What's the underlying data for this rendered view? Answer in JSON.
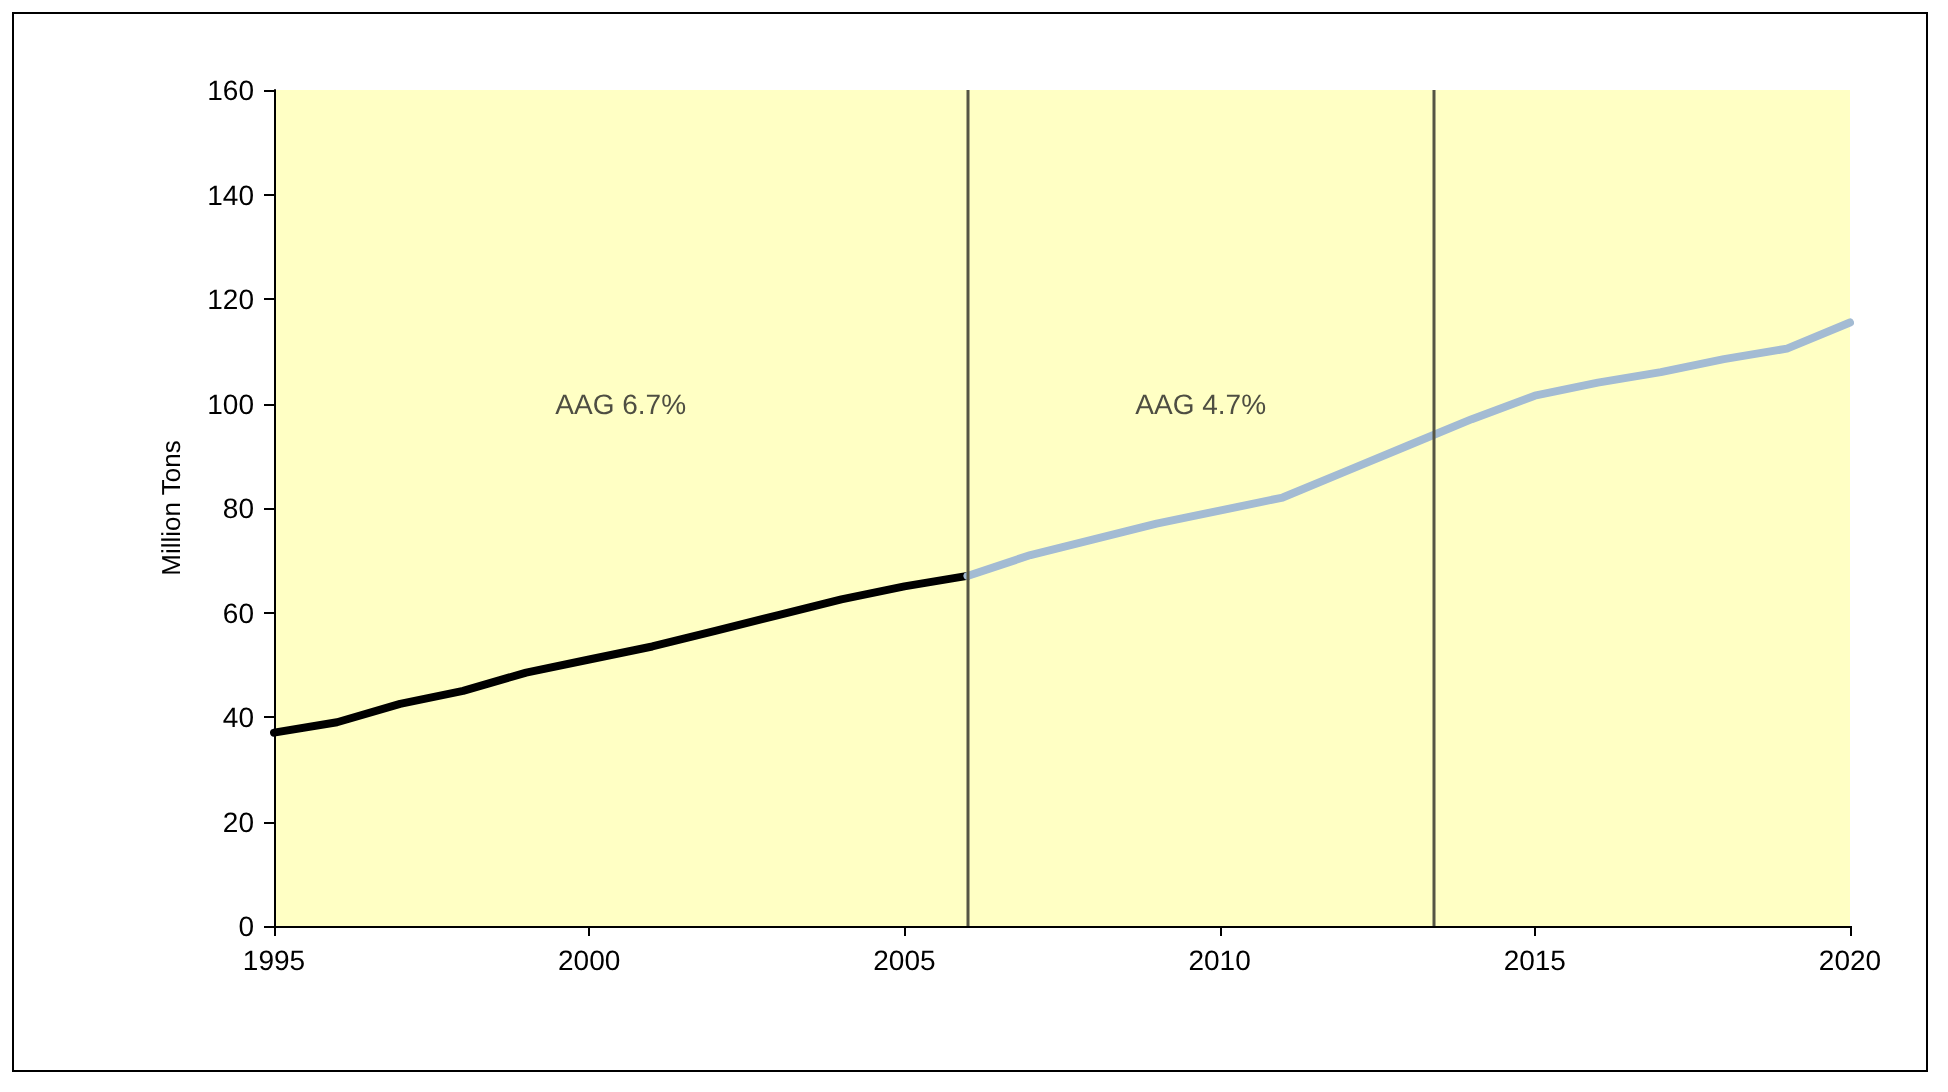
{
  "chart_data": {
    "type": "line",
    "ylabel": "Million Tons",
    "annotations": [
      "AAG 6.7%",
      "AAG 4.7%"
    ],
    "series": [
      {
        "color": "#000000",
        "x": [
          1995,
          1996,
          1997,
          1998,
          1999,
          2000,
          2001,
          2002,
          2003,
          2004,
          2005,
          2006
        ],
        "values": [
          37,
          39,
          42.5,
          45,
          48.5,
          51,
          53.5,
          56.5,
          59.5,
          62.5,
          65,
          67
        ]
      },
      {
        "color": "#a3bbd3",
        "x": [
          2006,
          2007,
          2008,
          2009,
          2010,
          2011,
          2012,
          2013,
          2014,
          2015,
          2016,
          2017,
          2018,
          2019,
          2020
        ],
        "values": [
          67,
          71,
          74,
          77,
          79.5,
          82,
          87,
          92,
          97,
          101.5,
          104,
          106,
          108.5,
          110.5,
          115.5
        ]
      }
    ],
    "ref_lines": [
      {
        "axis": "x",
        "value": 2006,
        "color": "#555544"
      },
      {
        "axis": "x",
        "value": 2013.4,
        "color": "#555544"
      }
    ],
    "xlim": [
      1995,
      2020
    ],
    "xticks": [
      1995,
      2000,
      2005,
      2010,
      2015,
      2020
    ],
    "ylim": [
      0,
      160
    ],
    "yticks": [
      0,
      20,
      40,
      60,
      80,
      100,
      120,
      140,
      160
    ],
    "grid": false,
    "marker": "none",
    "line_style": "solid"
  }
}
